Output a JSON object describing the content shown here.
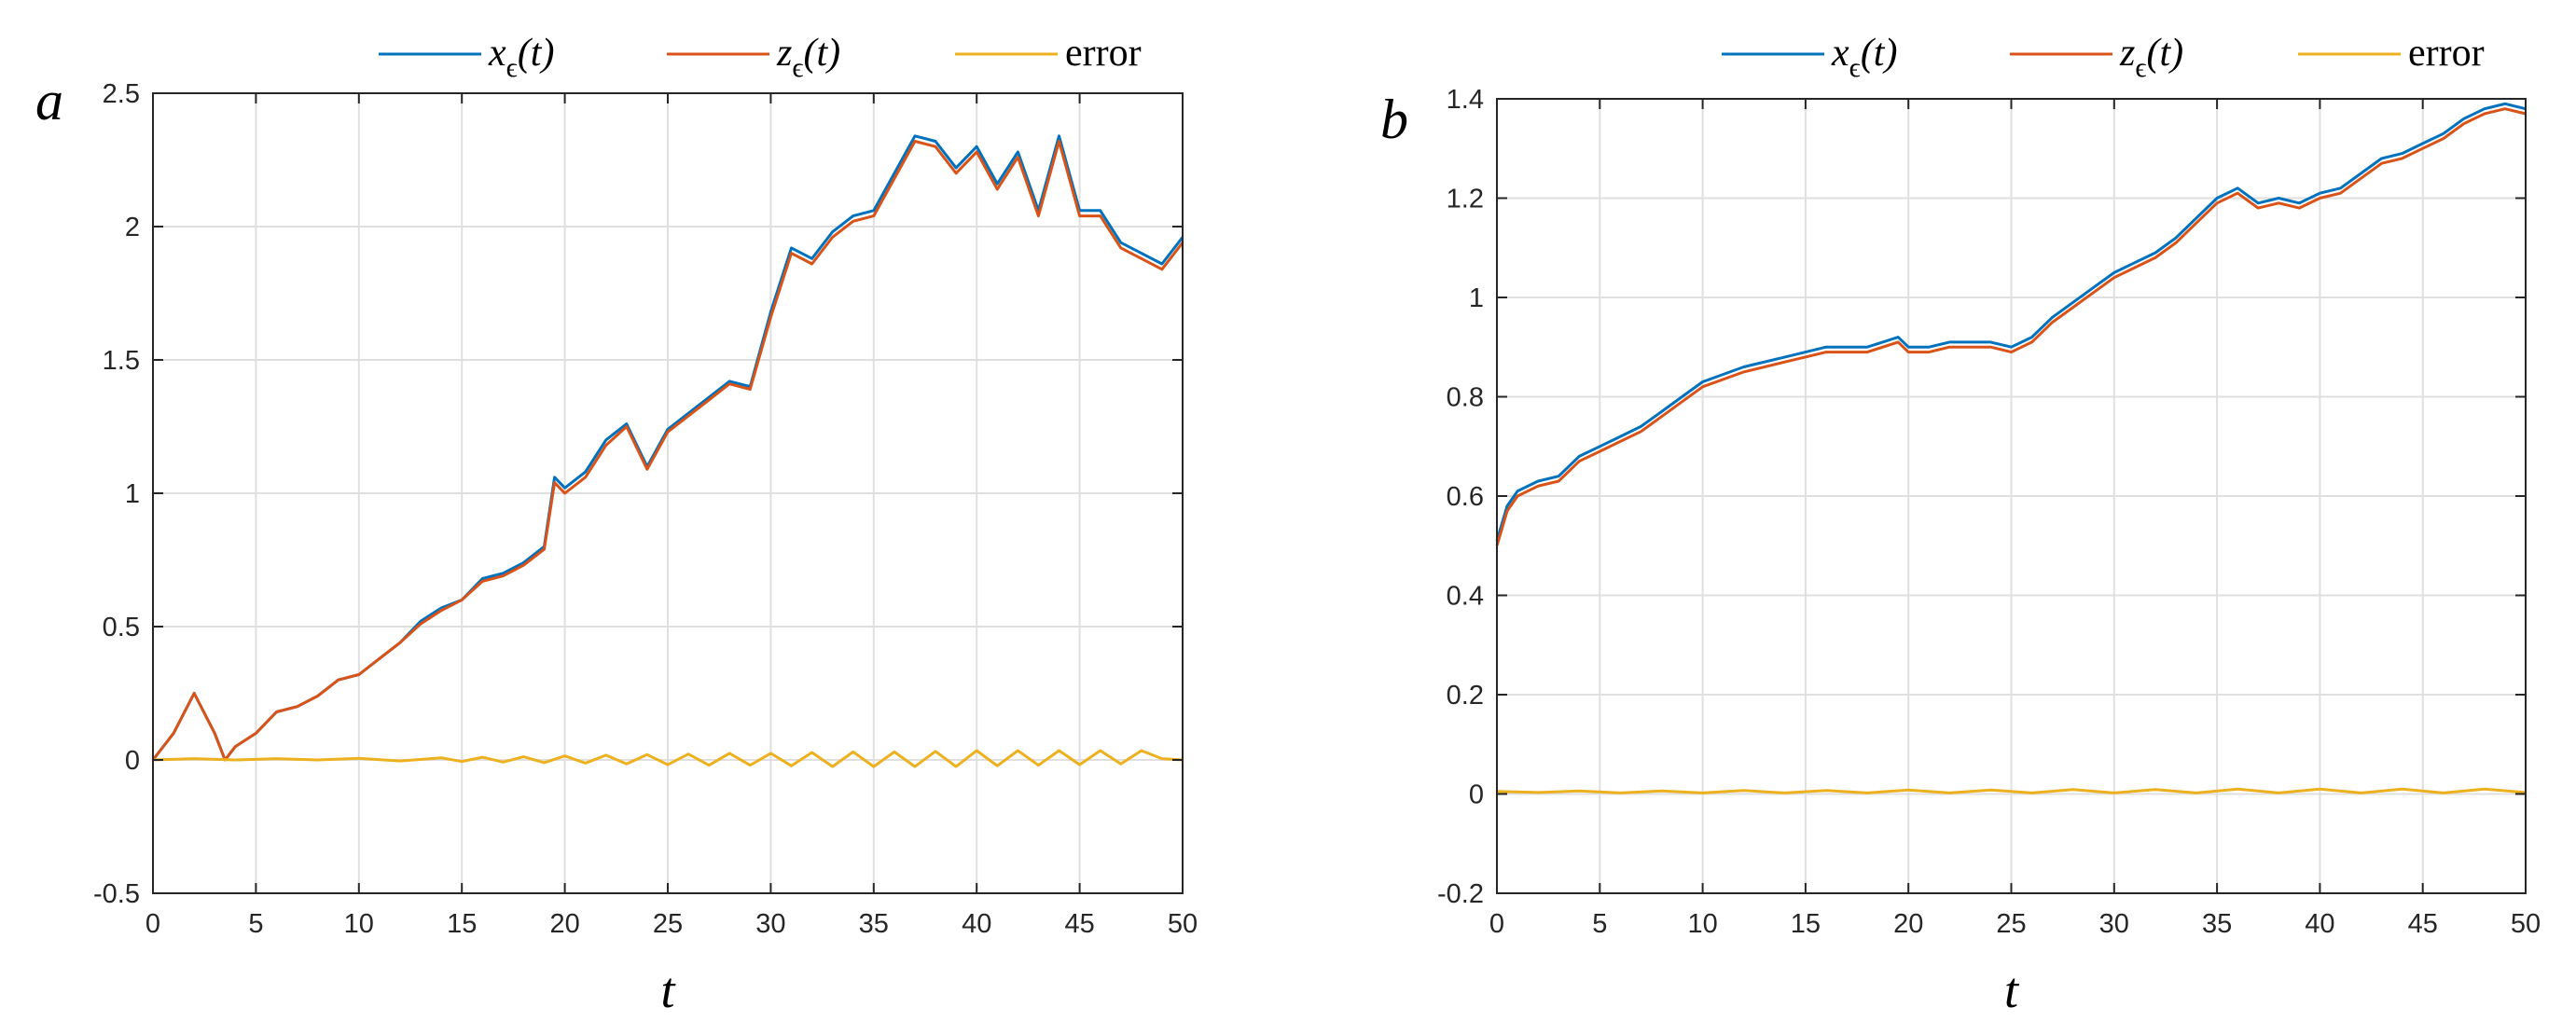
{
  "chart_data": [
    {
      "type": "line",
      "panel": "a",
      "title": "",
      "xlabel": "t",
      "ylabel": "",
      "xlim": [
        0,
        50
      ],
      "ylim": [
        -0.5,
        2.5
      ],
      "xticks": [
        0,
        5,
        10,
        15,
        20,
        25,
        30,
        35,
        40,
        45,
        50
      ],
      "yticks": [
        -0.5,
        0,
        0.5,
        1,
        1.5,
        2,
        2.5
      ],
      "xtick_labels": [
        "0",
        "5",
        "10",
        "15",
        "20",
        "25",
        "30",
        "35",
        "40",
        "45",
        "50"
      ],
      "ytick_labels": [
        "-0.5",
        "0",
        "0.5",
        "1",
        "1.5",
        "2",
        "2.5"
      ],
      "grid": true,
      "legend_position": "top-right",
      "legend": [
        {
          "var": "x",
          "sub": "ϵ",
          "arg": "(t)"
        },
        {
          "var": "z",
          "sub": "ϵ",
          "arg": "(t)"
        },
        {
          "text": "error"
        }
      ],
      "series": [
        {
          "key": "x",
          "color": "#0072BD",
          "x": [
            0,
            1,
            2,
            3,
            3.5,
            4,
            5,
            6,
            7,
            8,
            9,
            10,
            11,
            12,
            13,
            14,
            15,
            16,
            17,
            18,
            19,
            19.5,
            20,
            21,
            22,
            23,
            24,
            25,
            26,
            27,
            28,
            29,
            30,
            31,
            32,
            33,
            34,
            35,
            36,
            37,
            38,
            39,
            40,
            41,
            42,
            43,
            44,
            45,
            46,
            47,
            48,
            49,
            50
          ],
          "y": [
            0,
            0.1,
            0.25,
            0.1,
            0,
            0.05,
            0.1,
            0.18,
            0.2,
            0.24,
            0.3,
            0.32,
            0.38,
            0.44,
            0.52,
            0.57,
            0.6,
            0.68,
            0.7,
            0.74,
            0.8,
            1.06,
            1.02,
            1.08,
            1.2,
            1.26,
            1.1,
            1.24,
            1.3,
            1.36,
            1.42,
            1.4,
            1.68,
            1.92,
            1.88,
            1.98,
            2.04,
            2.06,
            2.2,
            2.34,
            2.32,
            2.22,
            2.3,
            2.16,
            2.28,
            2.06,
            2.34,
            2.06,
            2.06,
            1.94,
            1.9,
            1.86,
            1.96
          ]
        },
        {
          "key": "z",
          "color": "#D95319",
          "x": [
            0,
            1,
            2,
            3,
            3.5,
            4,
            5,
            6,
            7,
            8,
            9,
            10,
            11,
            12,
            13,
            14,
            15,
            16,
            17,
            18,
            19,
            19.5,
            20,
            21,
            22,
            23,
            24,
            25,
            26,
            27,
            28,
            29,
            30,
            31,
            32,
            33,
            34,
            35,
            36,
            37,
            38,
            39,
            40,
            41,
            42,
            43,
            44,
            45,
            46,
            47,
            48,
            49,
            50
          ],
          "y": [
            0,
            0.1,
            0.25,
            0.1,
            0,
            0.05,
            0.1,
            0.18,
            0.2,
            0.24,
            0.3,
            0.32,
            0.38,
            0.44,
            0.51,
            0.56,
            0.6,
            0.67,
            0.69,
            0.73,
            0.79,
            1.04,
            1.0,
            1.06,
            1.18,
            1.25,
            1.09,
            1.23,
            1.29,
            1.35,
            1.41,
            1.39,
            1.66,
            1.9,
            1.86,
            1.96,
            2.02,
            2.04,
            2.18,
            2.32,
            2.3,
            2.2,
            2.28,
            2.14,
            2.26,
            2.04,
            2.32,
            2.04,
            2.04,
            1.92,
            1.88,
            1.84,
            1.94
          ]
        },
        {
          "key": "error",
          "color": "#EDB120",
          "x": [
            0,
            2,
            4,
            6,
            8,
            10,
            12,
            14,
            15,
            16,
            17,
            18,
            19,
            20,
            21,
            22,
            23,
            24,
            25,
            26,
            27,
            28,
            29,
            30,
            31,
            32,
            33,
            34,
            35,
            36,
            37,
            38,
            39,
            40,
            41,
            42,
            43,
            44,
            45,
            46,
            47,
            48,
            49,
            50
          ],
          "y": [
            0,
            0.005,
            0,
            0.005,
            0,
            0.006,
            -0.004,
            0.008,
            -0.006,
            0.01,
            -0.008,
            0.012,
            -0.01,
            0.015,
            -0.012,
            0.018,
            -0.015,
            0.02,
            -0.018,
            0.022,
            -0.02,
            0.025,
            -0.02,
            0.025,
            -0.022,
            0.028,
            -0.025,
            0.03,
            -0.025,
            0.03,
            -0.025,
            0.032,
            -0.025,
            0.035,
            -0.022,
            0.035,
            -0.02,
            0.035,
            -0.018,
            0.035,
            -0.015,
            0.035,
            0.005,
            0
          ]
        }
      ]
    },
    {
      "type": "line",
      "panel": "b",
      "title": "",
      "xlabel": "t",
      "ylabel": "",
      "xlim": [
        0,
        50
      ],
      "ylim": [
        -0.2,
        1.4
      ],
      "xticks": [
        0,
        5,
        10,
        15,
        20,
        25,
        30,
        35,
        40,
        45,
        50
      ],
      "yticks": [
        -0.2,
        0,
        0.2,
        0.4,
        0.6,
        0.8,
        1,
        1.2,
        1.4
      ],
      "xtick_labels": [
        "0",
        "5",
        "10",
        "15",
        "20",
        "25",
        "30",
        "35",
        "40",
        "45",
        "50"
      ],
      "ytick_labels": [
        "-0.2",
        "0",
        "0.2",
        "0.4",
        "0.6",
        "0.8",
        "1",
        "1.2",
        "1.4"
      ],
      "grid": true,
      "legend_position": "top-right",
      "legend": [
        {
          "var": "x",
          "sub": "ϵ",
          "arg": "(t)"
        },
        {
          "var": "z",
          "sub": "ϵ",
          "arg": "(t)"
        },
        {
          "text": "error"
        }
      ],
      "series": [
        {
          "key": "x",
          "color": "#0072BD",
          "x": [
            0,
            0.5,
            1,
            2,
            3,
            4,
            5,
            6,
            7,
            8,
            9,
            10,
            12,
            14,
            16,
            18,
            19.5,
            20,
            21,
            22,
            24,
            25,
            26,
            27,
            28,
            29,
            30,
            31,
            32,
            33,
            34,
            35,
            36,
            37,
            38,
            39,
            40,
            41,
            42,
            43,
            44,
            45,
            46,
            47,
            48,
            49,
            50
          ],
          "y": [
            0.51,
            0.58,
            0.61,
            0.63,
            0.64,
            0.68,
            0.7,
            0.72,
            0.74,
            0.77,
            0.8,
            0.83,
            0.86,
            0.88,
            0.9,
            0.9,
            0.92,
            0.9,
            0.9,
            0.91,
            0.91,
            0.9,
            0.92,
            0.96,
            0.99,
            1.02,
            1.05,
            1.07,
            1.09,
            1.12,
            1.16,
            1.2,
            1.22,
            1.19,
            1.2,
            1.19,
            1.21,
            1.22,
            1.25,
            1.28,
            1.29,
            1.31,
            1.33,
            1.36,
            1.38,
            1.39,
            1.38
          ]
        },
        {
          "key": "z",
          "color": "#D95319",
          "x": [
            0,
            0.5,
            1,
            2,
            3,
            4,
            5,
            6,
            7,
            8,
            9,
            10,
            12,
            14,
            16,
            18,
            19.5,
            20,
            21,
            22,
            24,
            25,
            26,
            27,
            28,
            29,
            30,
            31,
            32,
            33,
            34,
            35,
            36,
            37,
            38,
            39,
            40,
            41,
            42,
            43,
            44,
            45,
            46,
            47,
            48,
            49,
            50
          ],
          "y": [
            0.5,
            0.57,
            0.6,
            0.62,
            0.63,
            0.67,
            0.69,
            0.71,
            0.73,
            0.76,
            0.79,
            0.82,
            0.85,
            0.87,
            0.89,
            0.89,
            0.91,
            0.89,
            0.89,
            0.9,
            0.9,
            0.89,
            0.91,
            0.95,
            0.98,
            1.01,
            1.04,
            1.06,
            1.08,
            1.11,
            1.15,
            1.19,
            1.21,
            1.18,
            1.19,
            1.18,
            1.2,
            1.21,
            1.24,
            1.27,
            1.28,
            1.3,
            1.32,
            1.35,
            1.37,
            1.38,
            1.37
          ]
        },
        {
          "key": "error",
          "color": "#EDB120",
          "x": [
            0,
            2,
            4,
            6,
            8,
            10,
            12,
            14,
            16,
            18,
            20,
            22,
            24,
            26,
            28,
            30,
            32,
            34,
            36,
            38,
            40,
            42,
            44,
            46,
            48,
            50
          ],
          "y": [
            0.005,
            0.003,
            0.006,
            0.002,
            0.006,
            0.002,
            0.007,
            0.002,
            0.007,
            0.002,
            0.008,
            0.002,
            0.008,
            0.002,
            0.009,
            0.002,
            0.009,
            0.002,
            0.01,
            0.002,
            0.01,
            0.002,
            0.01,
            0.002,
            0.01,
            0.003
          ]
        }
      ]
    }
  ]
}
